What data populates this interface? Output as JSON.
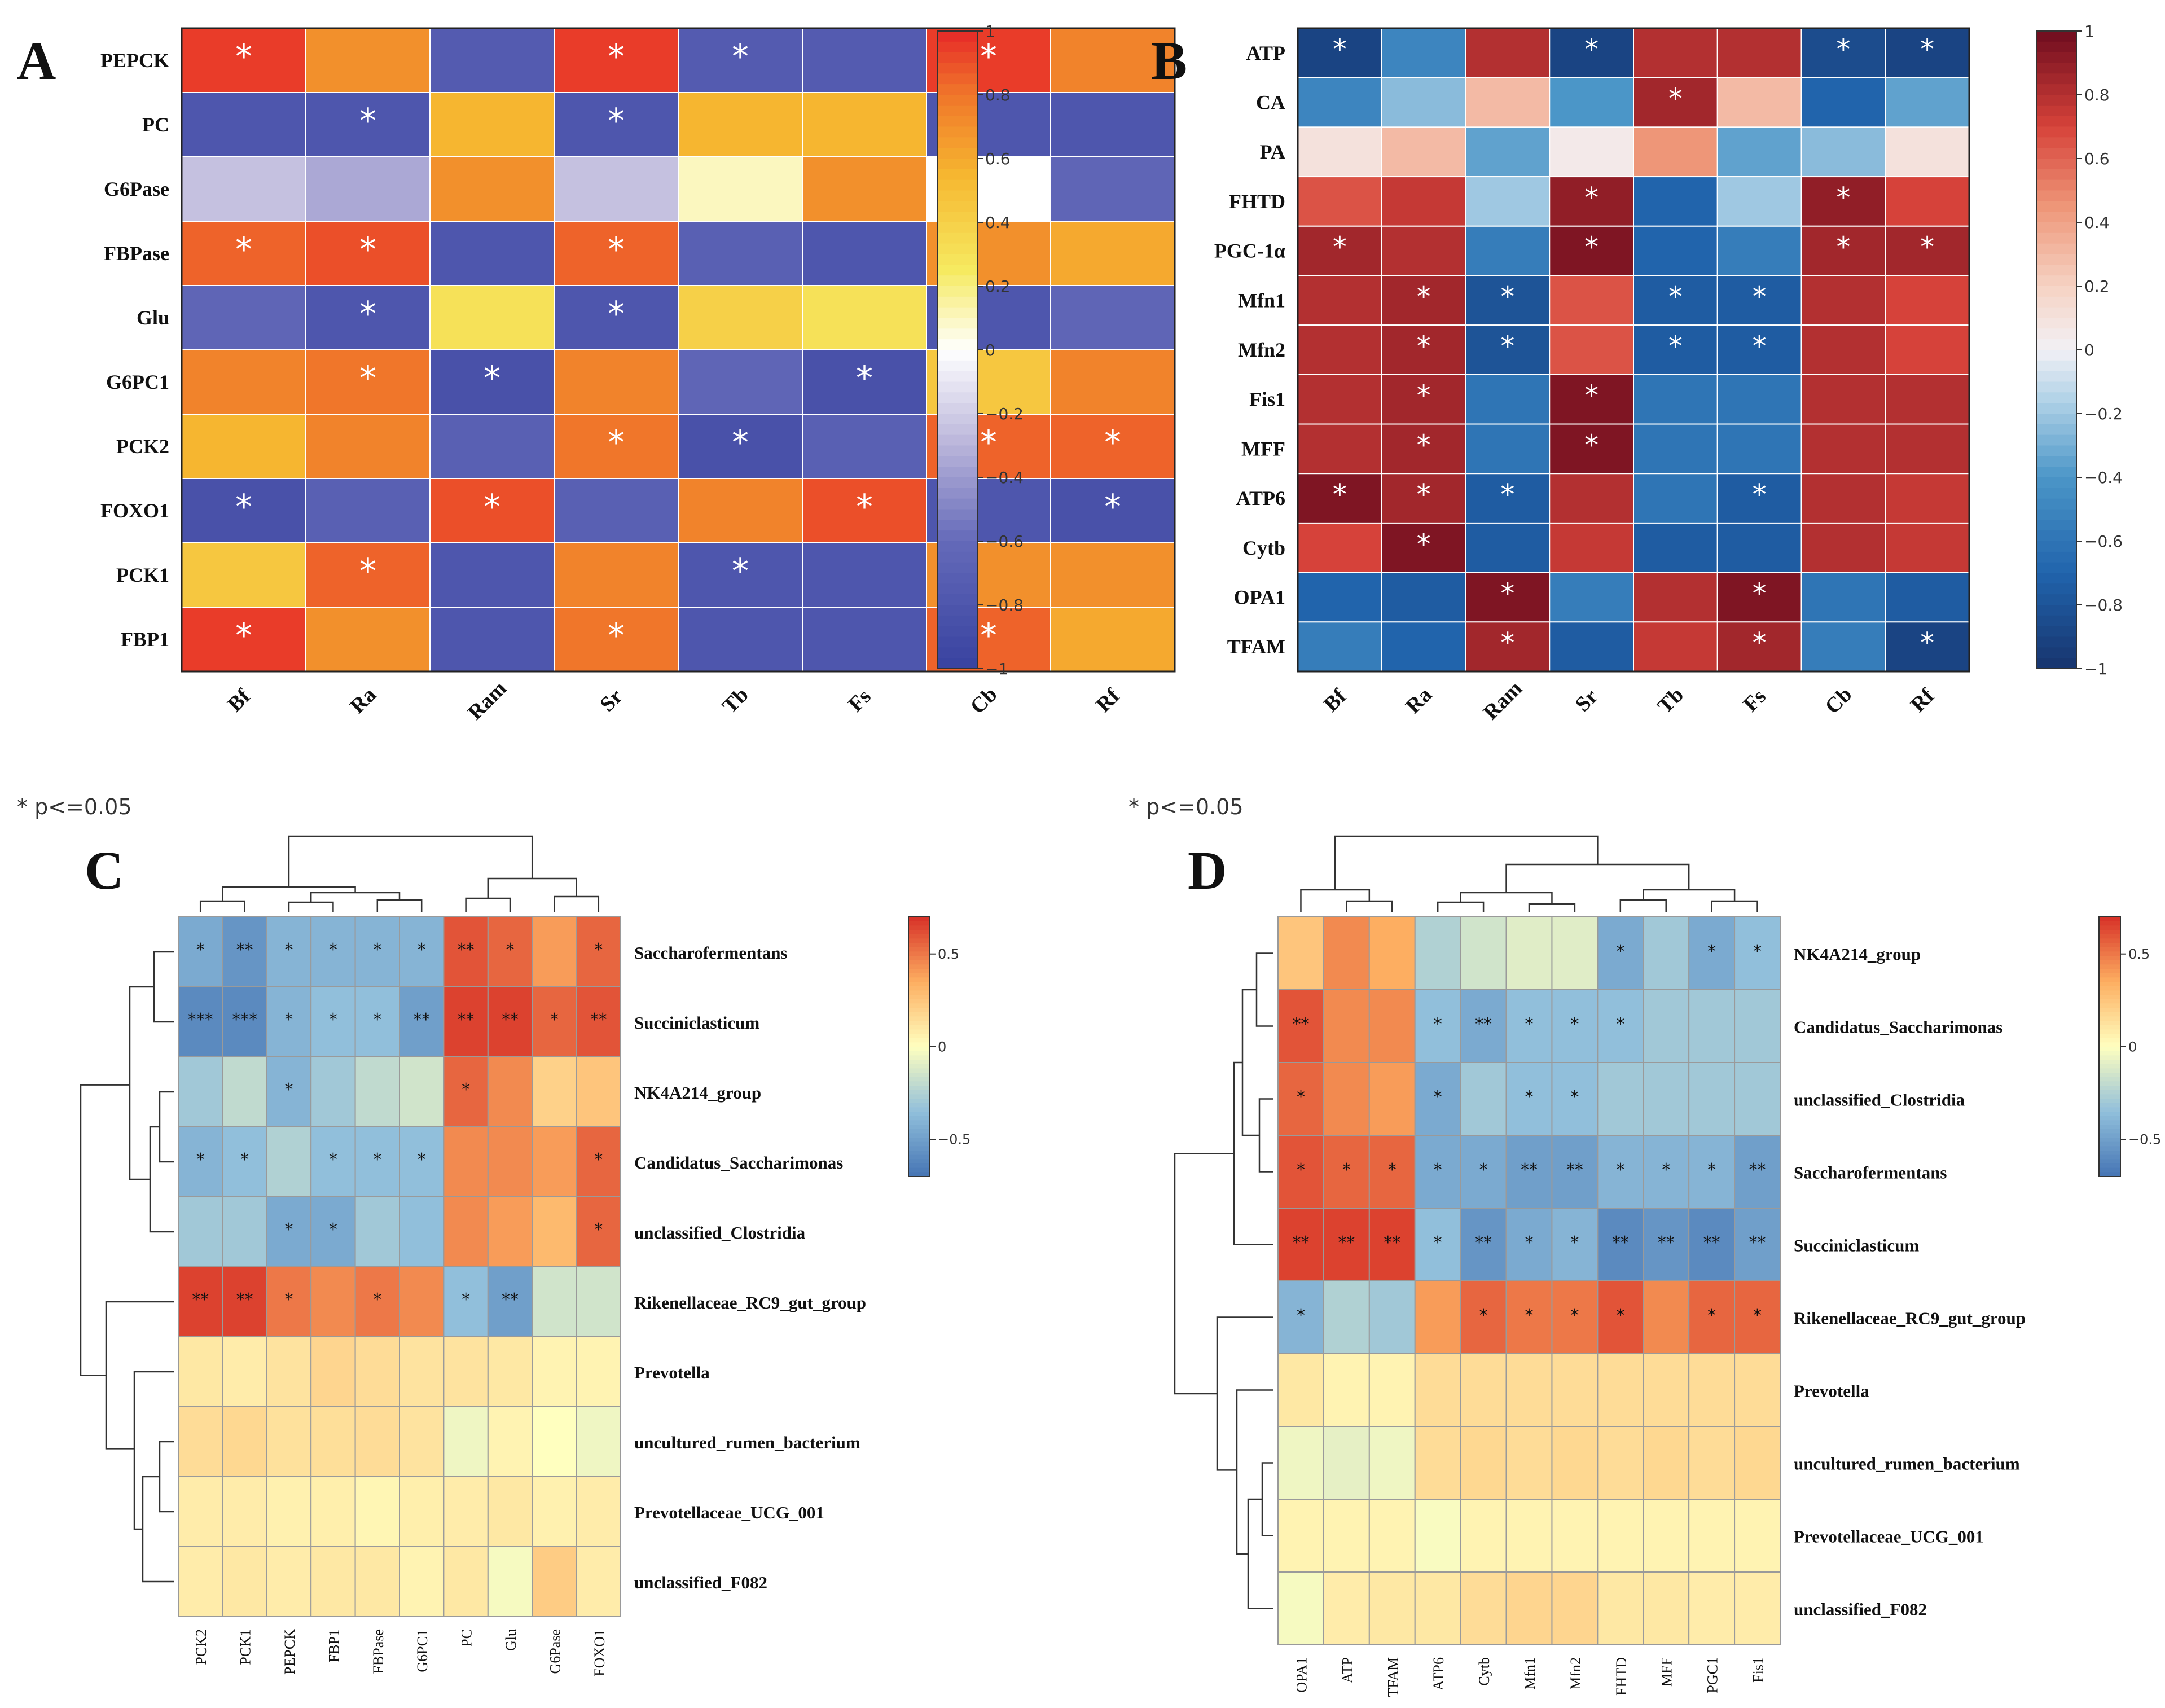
{
  "figure": {
    "note_c": "* p<=0.05",
    "note_d": "* p<=0.05"
  },
  "chart_data": [
    {
      "panel": "A",
      "type": "heatmap",
      "colormap": "blue-white-yellow-red",
      "range": [
        -1,
        1
      ],
      "rows": [
        "PEPCK",
        "PC",
        "G6Pase",
        "FBPase",
        "Glu",
        "G6PC1",
        "PCK2",
        "FOXO1",
        "PCK1",
        "FBP1"
      ],
      "cols": [
        "Bf",
        "Ra",
        "Ram",
        "Sr",
        "Tb",
        "Fs",
        "Cb",
        "Rf"
      ],
      "values": [
        [
          0.95,
          0.7,
          -0.75,
          0.95,
          -0.75,
          -0.75,
          0.95,
          0.75
        ],
        [
          -0.8,
          -0.8,
          0.55,
          -0.8,
          0.55,
          0.55,
          -0.8,
          -0.8
        ],
        [
          -0.25,
          -0.35,
          0.7,
          -0.25,
          0.1,
          0.7,
          0,
          -0.65
        ],
        [
          0.85,
          0.9,
          -0.8,
          0.85,
          -0.7,
          -0.8,
          0.7,
          0.6
        ],
        [
          -0.65,
          -0.8,
          0.3,
          -0.8,
          0.4,
          0.3,
          -0.8,
          -0.65
        ],
        [
          0.75,
          0.8,
          -0.85,
          0.75,
          -0.65,
          -0.85,
          0.45,
          0.75
        ],
        [
          0.55,
          0.75,
          -0.7,
          0.8,
          -0.85,
          -0.7,
          0.85,
          0.85
        ],
        [
          -0.85,
          -0.7,
          0.9,
          -0.7,
          0.75,
          0.9,
          -0.8,
          -0.85
        ],
        [
          0.45,
          0.85,
          -0.8,
          0.75,
          -0.8,
          -0.8,
          0.7,
          0.7
        ],
        [
          0.95,
          0.7,
          -0.8,
          0.8,
          -0.8,
          -0.8,
          0.85,
          0.6
        ]
      ],
      "sig": [
        [
          "*",
          "",
          "",
          "*",
          "*",
          "",
          "*",
          ""
        ],
        [
          "",
          "*",
          "",
          "*",
          "",
          "",
          "",
          ""
        ],
        [
          "",
          "",
          "",
          "",
          "",
          "",
          "",
          ""
        ],
        [
          "*",
          "*",
          "",
          "*",
          "",
          "",
          "",
          ""
        ],
        [
          "",
          "*",
          "",
          "*",
          "",
          "",
          "",
          ""
        ],
        [
          "",
          "*",
          "*",
          "",
          "",
          "*",
          "",
          ""
        ],
        [
          "",
          "",
          "",
          "*",
          "*",
          "",
          "*",
          "*"
        ],
        [
          "*",
          "",
          "*",
          "",
          "",
          "*",
          "",
          "*"
        ],
        [
          "",
          "*",
          "",
          "",
          "*",
          "",
          "",
          ""
        ],
        [
          "*",
          "",
          "",
          "*",
          "",
          "",
          "*",
          ""
        ]
      ],
      "colorbar_ticks": [
        "1",
        "0.8",
        "0.6",
        "0.4",
        "0.2",
        "0",
        "-0.2",
        "-0.4",
        "-0.6",
        "-0.8",
        "-1"
      ]
    },
    {
      "panel": "B",
      "type": "heatmap",
      "colormap": "RdBu_r",
      "range": [
        -1,
        1
      ],
      "rows": [
        "ATP",
        "CA",
        "PA",
        "FHTD",
        "PGC-1α",
        "Mfn1",
        "Mfn2",
        "Fis1",
        "MFF",
        "ATP6",
        "Cytb",
        "OPA1",
        "TFAM"
      ],
      "cols": [
        "Bf",
        "Ra",
        "Ram",
        "Sr",
        "Tb",
        "Fs",
        "Cb",
        "Rf"
      ],
      "values": [
        [
          -0.9,
          -0.5,
          0.8,
          -0.9,
          0.8,
          0.8,
          -0.85,
          -0.9
        ],
        [
          -0.5,
          -0.25,
          0.3,
          -0.4,
          0.85,
          0.3,
          -0.7,
          -0.35
        ],
        [
          0.1,
          0.3,
          -0.35,
          0.05,
          0.45,
          -0.35,
          -0.25,
          0.1
        ],
        [
          0.65,
          0.75,
          -0.2,
          0.9,
          -0.7,
          -0.2,
          0.9,
          0.7
        ],
        [
          0.85,
          0.8,
          -0.55,
          0.95,
          -0.7,
          -0.55,
          0.85,
          0.85
        ],
        [
          0.8,
          0.85,
          -0.8,
          0.65,
          -0.75,
          -0.75,
          0.8,
          0.7
        ],
        [
          0.8,
          0.85,
          -0.8,
          0.65,
          -0.75,
          -0.75,
          0.8,
          0.7
        ],
        [
          0.8,
          0.85,
          -0.6,
          0.95,
          -0.6,
          -0.6,
          0.8,
          0.8
        ],
        [
          0.8,
          0.85,
          -0.6,
          0.95,
          -0.6,
          -0.6,
          0.8,
          0.8
        ],
        [
          0.95,
          0.85,
          -0.75,
          0.8,
          -0.6,
          -0.75,
          0.8,
          0.75
        ],
        [
          0.7,
          0.95,
          -0.75,
          0.75,
          -0.75,
          -0.75,
          0.8,
          0.75
        ],
        [
          -0.7,
          -0.75,
          0.95,
          -0.55,
          0.8,
          0.95,
          -0.6,
          -0.75
        ],
        [
          -0.55,
          -0.7,
          0.85,
          -0.75,
          0.75,
          0.85,
          -0.55,
          -0.9
        ]
      ],
      "sig": [
        [
          "*",
          "",
          "",
          "*",
          "",
          "",
          "*",
          "*"
        ],
        [
          "",
          "",
          "",
          "",
          "*",
          "",
          "",
          ""
        ],
        [
          "",
          "",
          "",
          "",
          "",
          "",
          "",
          ""
        ],
        [
          "",
          "",
          "",
          "*",
          "",
          "",
          "*",
          ""
        ],
        [
          "*",
          "",
          "",
          "*",
          "",
          "",
          "*",
          "*"
        ],
        [
          "",
          "*",
          "*",
          "",
          "*",
          "*",
          "",
          ""
        ],
        [
          "",
          "*",
          "*",
          "",
          "*",
          "*",
          "",
          ""
        ],
        [
          "",
          "*",
          "",
          "*",
          "",
          "",
          "",
          ""
        ],
        [
          "",
          "*",
          "",
          "*",
          "",
          "",
          "",
          ""
        ],
        [
          "*",
          "*",
          "*",
          "",
          "",
          "*",
          "",
          ""
        ],
        [
          "",
          "*",
          "",
          "",
          "",
          "",
          "",
          ""
        ],
        [
          "",
          "",
          "*",
          "",
          "",
          "*",
          "",
          ""
        ],
        [
          "",
          "",
          "*",
          "",
          "",
          "*",
          "",
          "*"
        ]
      ],
      "colorbar_ticks": [
        "1",
        "0.8",
        "0.6",
        "0.4",
        "0.2",
        "0",
        "-0.2",
        "-0.4",
        "-0.6",
        "-0.8",
        "-1"
      ]
    },
    {
      "panel": "C",
      "type": "heatmap",
      "colormap": "RdYlBu_r",
      "range": [
        -0.7,
        0.7
      ],
      "rows": [
        "Saccharofermentans",
        "Succiniclasticum",
        "NK4A214_group",
        "Candidatus_Saccharimonas",
        "unclassified_Clostridia",
        "Rikenellaceae_RC9_gut_group",
        "Prevotella",
        "uncultured_rumen_bacterium",
        "Prevotellaceae_UCG_001",
        "unclassified_F082"
      ],
      "cols": [
        "PCK2",
        "PCK1",
        "PEPCK",
        "FBP1",
        "FBPase",
        "G6PC1",
        "PC",
        "Glu",
        "G6Pase",
        "FOXO1"
      ],
      "values": [
        [
          -0.45,
          -0.55,
          -0.4,
          -0.4,
          -0.4,
          -0.4,
          0.6,
          0.55,
          0.4,
          0.55
        ],
        [
          -0.6,
          -0.6,
          -0.4,
          -0.35,
          -0.35,
          -0.5,
          0.65,
          0.65,
          0.55,
          0.6
        ],
        [
          -0.3,
          -0.2,
          -0.4,
          -0.3,
          -0.2,
          -0.15,
          0.55,
          0.45,
          0.2,
          0.25
        ],
        [
          -0.4,
          -0.35,
          -0.25,
          -0.35,
          -0.35,
          -0.35,
          0.45,
          0.45,
          0.4,
          0.55
        ],
        [
          -0.3,
          -0.3,
          -0.45,
          -0.45,
          -0.3,
          -0.35,
          0.45,
          0.4,
          0.3,
          0.55
        ],
        [
          0.65,
          0.65,
          0.5,
          0.45,
          0.5,
          0.45,
          -0.35,
          -0.5,
          -0.15,
          -0.15
        ],
        [
          0.1,
          0.08,
          0.12,
          0.18,
          0.15,
          0.12,
          0.12,
          0.1,
          0.05,
          0.05
        ],
        [
          0.15,
          0.17,
          0.13,
          0.14,
          0.15,
          0.12,
          -0.05,
          0.05,
          0,
          -0.05
        ],
        [
          0.08,
          0.08,
          0.06,
          0.07,
          0.04,
          0.07,
          0.08,
          0.1,
          0.06,
          0.08
        ],
        [
          0.08,
          0.1,
          0.08,
          0.1,
          0.1,
          0.05,
          0.1,
          -0.03,
          0.22,
          0.08
        ]
      ],
      "sig": [
        [
          "*",
          "**",
          "*",
          "*",
          "*",
          "*",
          "**",
          "*",
          "",
          "*"
        ],
        [
          "***",
          "***",
          "*",
          "*",
          "*",
          "**",
          "**",
          "**",
          "*",
          "**"
        ],
        [
          "",
          "",
          "*",
          "",
          "",
          "",
          "*",
          "",
          "",
          ""
        ],
        [
          "*",
          "*",
          "",
          "*",
          "*",
          "*",
          "",
          "",
          "",
          "*"
        ],
        [
          "",
          "",
          "*",
          "*",
          "",
          "",
          "",
          "",
          "",
          "*"
        ],
        [
          "**",
          "**",
          "*",
          "",
          "*",
          "",
          "*",
          "**",
          "",
          ""
        ],
        [
          "",
          "",
          "",
          "",
          "",
          "",
          "",
          "",
          "",
          ""
        ],
        [
          "",
          "",
          "",
          "",
          "",
          "",
          "",
          "",
          "",
          ""
        ],
        [
          "",
          "",
          "",
          "",
          "",
          "",
          "",
          "",
          "",
          ""
        ],
        [
          "",
          "",
          "",
          "",
          "",
          "",
          "",
          "",
          "",
          ""
        ]
      ],
      "colorbar_ticks": [
        "0.5",
        "0",
        "-0.5"
      ]
    },
    {
      "panel": "D",
      "type": "heatmap",
      "colormap": "RdYlBu_r",
      "range": [
        -0.7,
        0.7
      ],
      "rows": [
        "NK4A214_group",
        "Candidatus_Saccharimonas",
        "unclassified_Clostridia",
        "Saccharofermentans",
        "Succiniclasticum",
        "Rikenellaceae_RC9_gut_group",
        "Prevotella",
        "uncultured_rumen_bacterium",
        "Prevotellaceae_UCG_001",
        "unclassified_F082"
      ],
      "cols": [
        "OPA1",
        "ATP",
        "TFAM",
        "ATP6",
        "Cytb",
        "Mfn1",
        "Mfn2",
        "FHTD",
        "MFF",
        "PGC1",
        "Fis1"
      ],
      "values": [
        [
          0.25,
          0.45,
          0.35,
          -0.25,
          -0.15,
          -0.1,
          -0.1,
          -0.45,
          -0.3,
          -0.45,
          -0.35
        ],
        [
          0.6,
          0.45,
          0.45,
          -0.35,
          -0.45,
          -0.35,
          -0.35,
          -0.35,
          -0.3,
          -0.3,
          -0.3
        ],
        [
          0.55,
          0.45,
          0.4,
          -0.45,
          -0.3,
          -0.35,
          -0.35,
          -0.3,
          -0.3,
          -0.3,
          -0.3
        ],
        [
          0.6,
          0.55,
          0.55,
          -0.45,
          -0.45,
          -0.5,
          -0.5,
          -0.4,
          -0.4,
          -0.4,
          -0.5
        ],
        [
          0.65,
          0.65,
          0.65,
          -0.35,
          -0.55,
          -0.45,
          -0.4,
          -0.6,
          -0.55,
          -0.6,
          -0.5
        ],
        [
          -0.4,
          -0.25,
          -0.3,
          0.4,
          0.55,
          0.5,
          0.5,
          0.6,
          0.45,
          0.55,
          0.55
        ],
        [
          0.1,
          0.05,
          0.05,
          0.15,
          0.15,
          0.15,
          0.15,
          0.15,
          0.15,
          0.15,
          0.15
        ],
        [
          -0.05,
          -0.08,
          -0.05,
          0.15,
          0.17,
          0.15,
          0.17,
          0.15,
          0.17,
          0.15,
          0.17
        ],
        [
          0.05,
          0.05,
          0.05,
          -0.02,
          0.05,
          0.05,
          0.05,
          0.05,
          0.05,
          0.05,
          0.05
        ],
        [
          -0.03,
          0.08,
          0.1,
          0.1,
          0.15,
          0.18,
          0.18,
          0.1,
          0.1,
          0.08,
          0.08
        ]
      ],
      "sig": [
        [
          "",
          "",
          "",
          "",
          "",
          "",
          "",
          "*",
          "",
          "*",
          "*"
        ],
        [
          "**",
          "",
          "",
          "*",
          "**",
          "*",
          "*",
          "*",
          "",
          "",
          ""
        ],
        [
          "*",
          "",
          "",
          "*",
          "",
          "*",
          "*",
          "",
          "",
          "",
          ""
        ],
        [
          "*",
          "*",
          "*",
          "*",
          "*",
          "**",
          "**",
          "*",
          "*",
          "*",
          "**"
        ],
        [
          "**",
          "**",
          "**",
          "*",
          "**",
          "*",
          "*",
          "**",
          "**",
          "**",
          "**"
        ],
        [
          "*",
          "",
          "",
          "",
          "*",
          "*",
          "*",
          "*",
          "",
          "*",
          "*"
        ],
        [
          "",
          "",
          "",
          "",
          "",
          "",
          "",
          "",
          "",
          "",
          ""
        ],
        [
          "",
          "",
          "",
          "",
          "",
          "",
          "",
          "",
          "",
          "",
          ""
        ],
        [
          "",
          "",
          "",
          "",
          "",
          "",
          "",
          "",
          "",
          "",
          ""
        ],
        [
          "",
          "",
          "",
          "",
          "",
          "",
          "",
          "",
          "",
          "",
          ""
        ]
      ],
      "colorbar_ticks": [
        "0.5",
        "0",
        "-0.5"
      ]
    }
  ]
}
